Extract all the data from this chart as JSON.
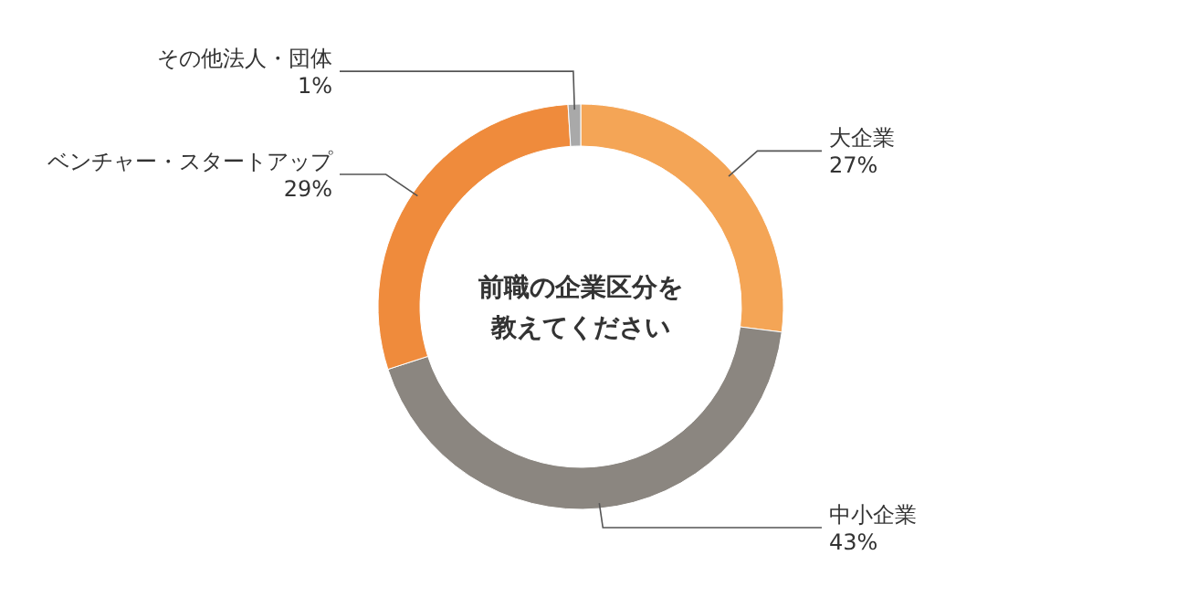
{
  "chart_data": {
    "type": "donut",
    "title": "前職の企業区分を教えてください",
    "categories": [
      "大企業",
      "中小企業",
      "ベンチャー・スタートアップ",
      "その他法人・団体"
    ],
    "values": [
      27,
      43,
      29,
      1
    ],
    "value_labels": [
      "27%",
      "43%",
      "29%",
      "1%"
    ],
    "colors": [
      "#f4a556",
      "#8b8680",
      "#ef8b3c",
      "#a9a9a9"
    ]
  }
}
